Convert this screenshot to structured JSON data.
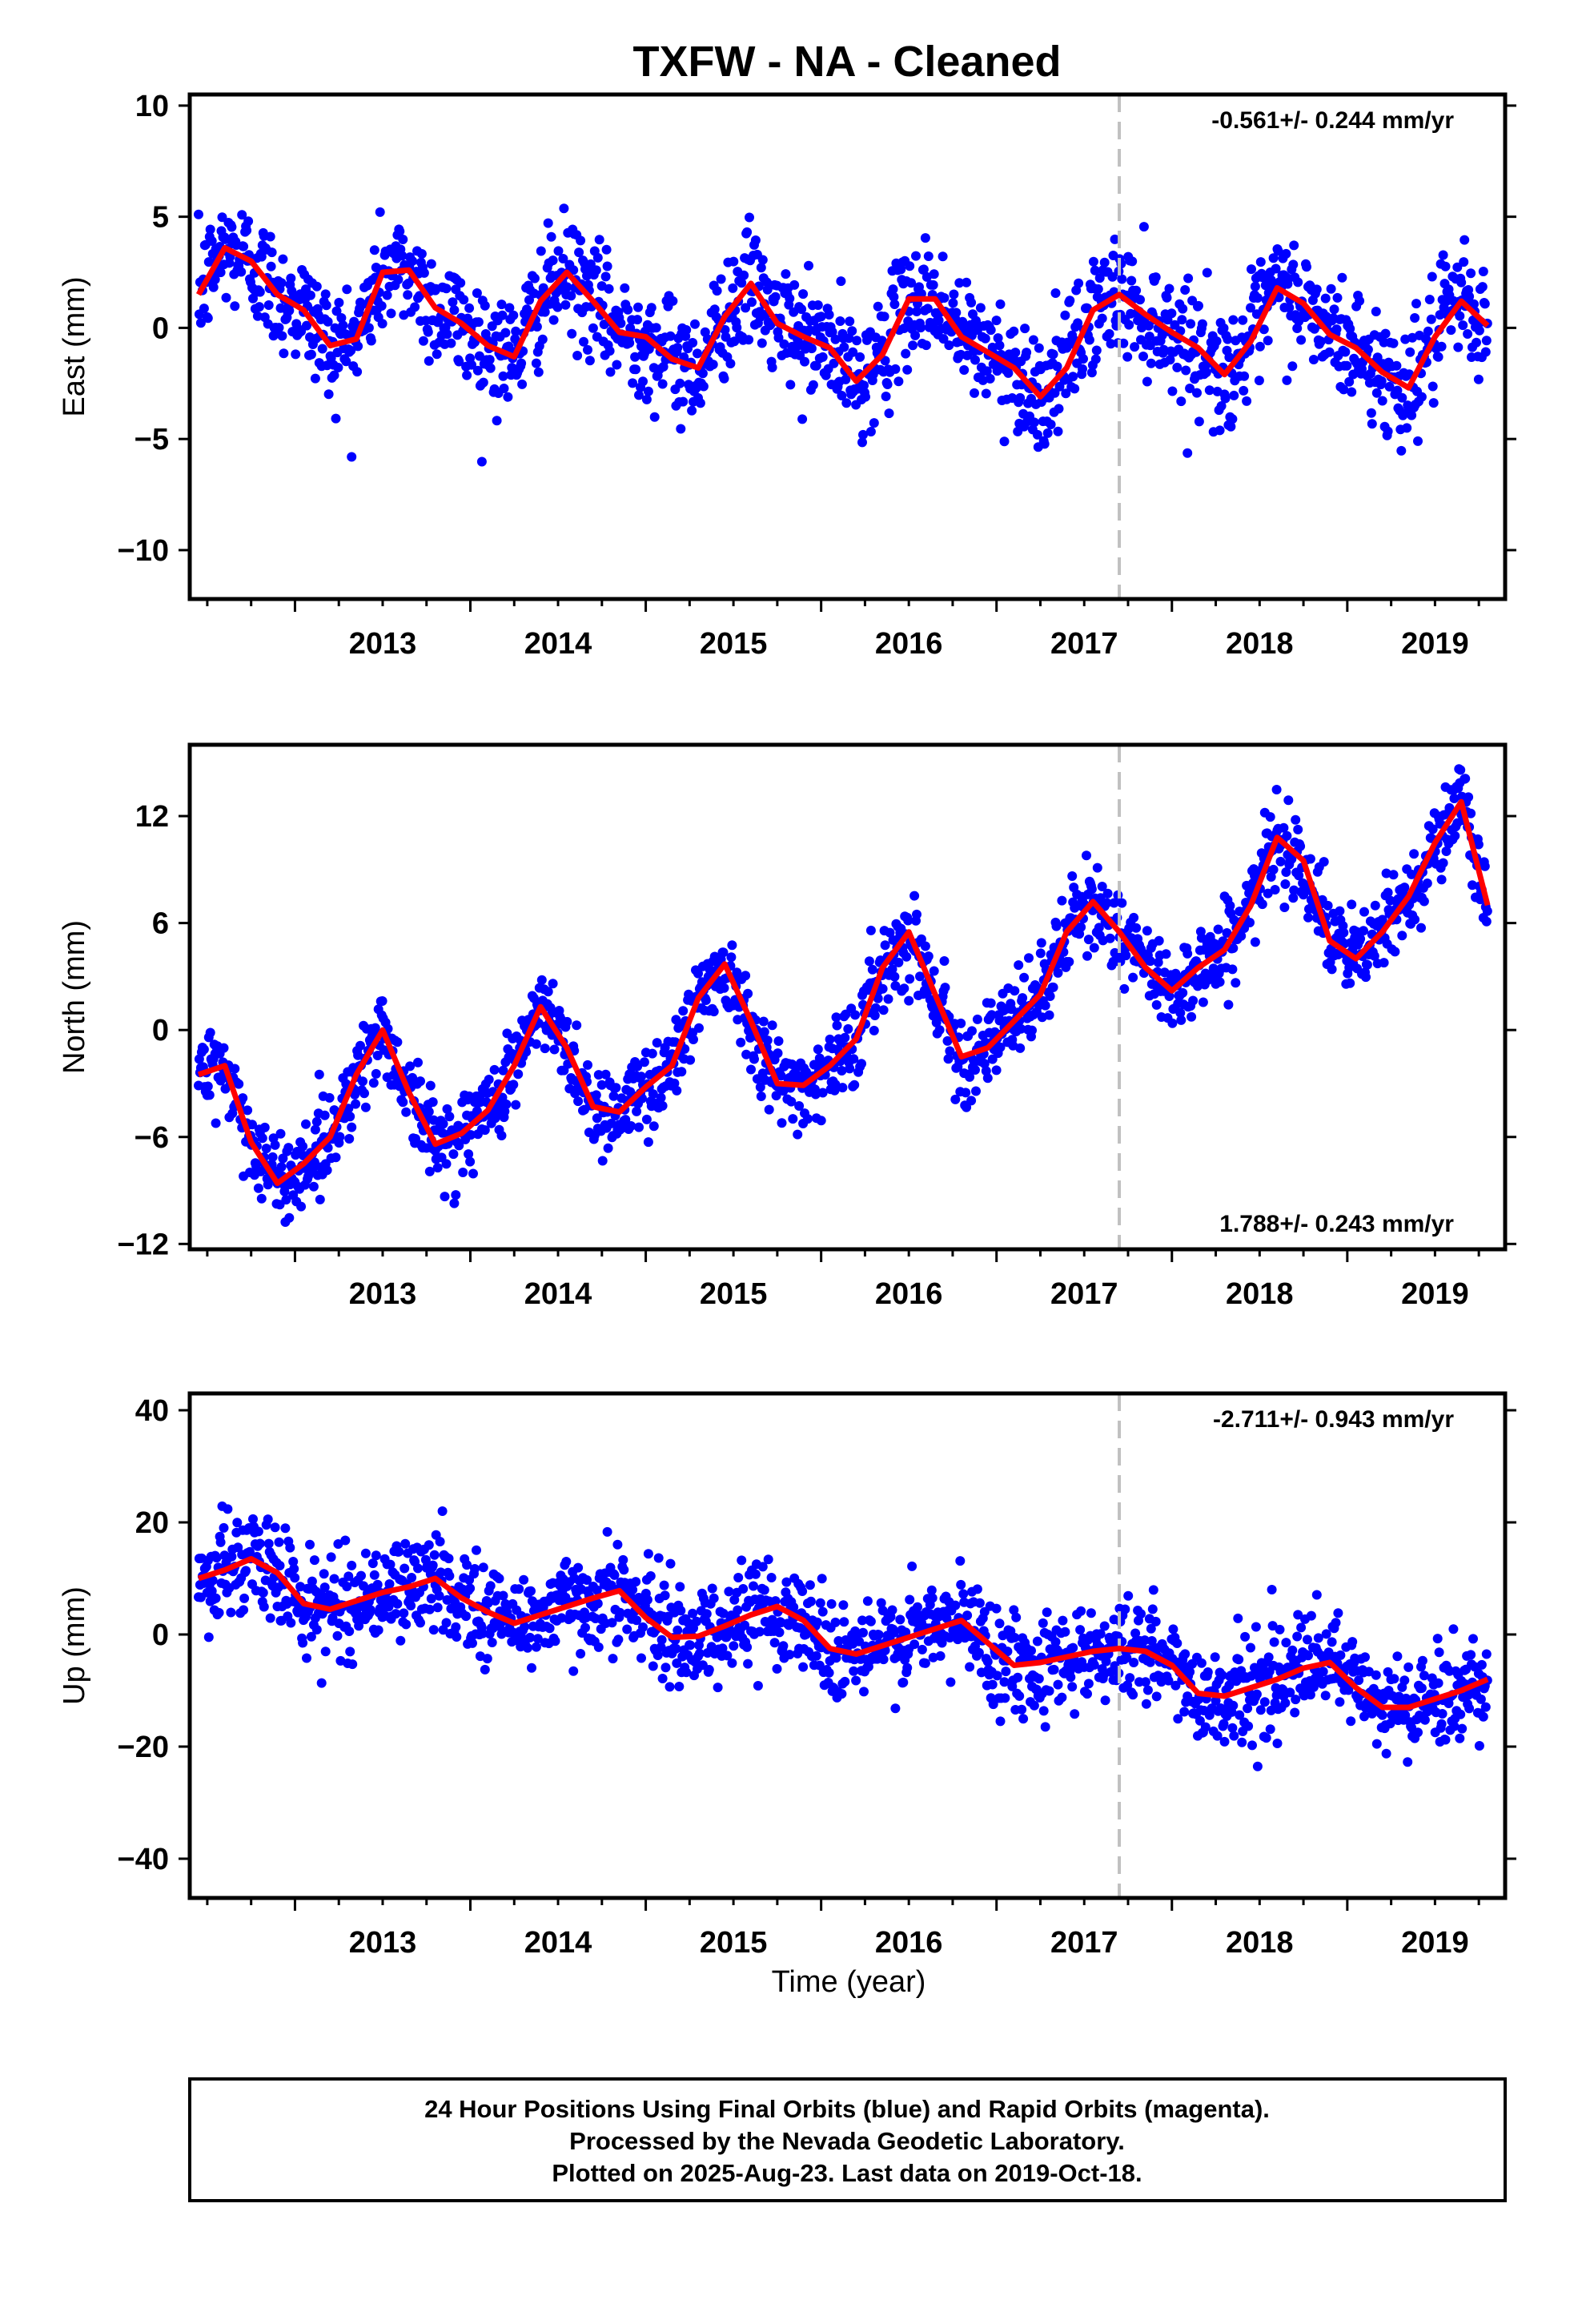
{
  "title": "TXFW  - NA - Cleaned",
  "xlabel": "Time (year)",
  "colors": {
    "final_orbits": "#0000ff",
    "model": "#ff0000",
    "frame": "#000000",
    "offset_line": "#c0c0c0"
  },
  "footer": {
    "line1": "24 Hour Positions Using Final Orbits (blue) and Rapid Orbits (magenta).",
    "line2": "Processed by the Nevada Geodetic Laboratory.",
    "line3": "Plotted on 2025-Aug-23. Last data on 2019-Oct-18."
  },
  "chart_data": [
    {
      "type": "scatter",
      "component": "east",
      "ylabel": "East (mm)",
      "rate_text": "-0.561+/- 0.244 mm/yr",
      "rate_position": "top-right",
      "xlim": [
        2012.4,
        2019.9
      ],
      "ylim": [
        -12.2,
        10.5
      ],
      "xticks": [
        2013,
        2014,
        2015,
        2016,
        2017,
        2018,
        2019
      ],
      "yticks": [
        -10,
        -5,
        0,
        5,
        10
      ],
      "offset_epoch": 2017.7,
      "model_series": {
        "name": "model",
        "x": [
          2012.45,
          2012.6,
          2012.75,
          2012.9,
          2013.05,
          2013.2,
          2013.35,
          2013.5,
          2013.65,
          2013.8,
          2013.95,
          2014.1,
          2014.25,
          2014.4,
          2014.55,
          2014.7,
          2014.85,
          2015.0,
          2015.15,
          2015.3,
          2015.45,
          2015.6,
          2015.75,
          2015.9,
          2016.05,
          2016.2,
          2016.35,
          2016.5,
          2016.65,
          2016.8,
          2016.95,
          2017.1,
          2017.25,
          2017.4,
          2017.55,
          2017.7,
          2017.85,
          2018.0,
          2018.15,
          2018.3,
          2018.45,
          2018.6,
          2018.75,
          2018.9,
          2019.05,
          2019.2,
          2019.35,
          2019.5,
          2019.65,
          2019.8
        ],
        "y": [
          1.5,
          3.6,
          3.0,
          1.5,
          0.8,
          -0.8,
          -0.5,
          2.5,
          2.6,
          0.9,
          0.2,
          -0.8,
          -1.3,
          1.2,
          2.5,
          1.2,
          -0.2,
          -0.4,
          -1.4,
          -1.8,
          0.5,
          2.0,
          0.2,
          -0.4,
          -0.9,
          -2.4,
          -1.2,
          1.3,
          1.3,
          -0.4,
          -1.1,
          -1.8,
          -3.1,
          -1.8,
          0.8,
          1.5,
          0.6,
          -0.2,
          -0.9,
          -2.1,
          -0.6,
          1.8,
          1.1,
          -0.3,
          -0.9,
          -2.0,
          -2.7,
          -0.4,
          1.2,
          0.1
        ]
      }
    },
    {
      "type": "scatter",
      "component": "north",
      "ylabel": "North (mm)",
      "rate_text": "1.788+/- 0.243 mm/yr",
      "rate_position": "bottom-right",
      "xlim": [
        2012.4,
        2019.9
      ],
      "ylim": [
        -12.3,
        16.0
      ],
      "xticks": [
        2013,
        2014,
        2015,
        2016,
        2017,
        2018,
        2019
      ],
      "yticks": [
        -12,
        -6,
        0,
        6,
        12
      ],
      "offset_epoch": 2017.7,
      "model_series": {
        "name": "model",
        "x": [
          2012.45,
          2012.6,
          2012.75,
          2012.9,
          2013.05,
          2013.2,
          2013.35,
          2013.5,
          2013.65,
          2013.8,
          2013.95,
          2014.1,
          2014.25,
          2014.4,
          2014.55,
          2014.7,
          2014.85,
          2015.0,
          2015.15,
          2015.3,
          2015.45,
          2015.6,
          2015.75,
          2015.9,
          2016.05,
          2016.2,
          2016.35,
          2016.5,
          2016.65,
          2016.8,
          2016.95,
          2017.1,
          2017.25,
          2017.4,
          2017.55,
          2017.7,
          2017.85,
          2018.0,
          2018.15,
          2018.3,
          2018.45,
          2018.6,
          2018.75,
          2018.9,
          2019.05,
          2019.2,
          2019.35,
          2019.5,
          2019.65,
          2019.8
        ],
        "y": [
          -2.5,
          -2.0,
          -6.3,
          -8.6,
          -7.5,
          -6.0,
          -2.5,
          0.0,
          -3.5,
          -6.4,
          -5.8,
          -4.5,
          -2.0,
          1.3,
          -1.0,
          -4.3,
          -4.6,
          -3.2,
          -2.0,
          1.8,
          3.7,
          0.5,
          -3.0,
          -3.1,
          -2.0,
          -0.5,
          3.5,
          5.5,
          2.0,
          -1.5,
          -1.0,
          0.5,
          2.0,
          5.5,
          7.2,
          5.5,
          3.5,
          2.2,
          3.5,
          4.5,
          7.0,
          10.8,
          9.5,
          5.0,
          4.0,
          5.5,
          7.5,
          10.5,
          12.8,
          7.0
        ]
      }
    },
    {
      "type": "scatter",
      "component": "up",
      "ylabel": "Up (mm)",
      "rate_text": "-2.711+/- 0.943 mm/yr",
      "rate_position": "top-right",
      "xlim": [
        2012.4,
        2019.9
      ],
      "ylim": [
        -47,
        43
      ],
      "xticks": [
        2013,
        2014,
        2015,
        2016,
        2017,
        2018,
        2019
      ],
      "yticks": [
        -40,
        -20,
        0,
        20,
        40
      ],
      "offset_epoch": 2017.7,
      "model_series": {
        "name": "model",
        "x": [
          2012.45,
          2012.6,
          2012.75,
          2012.9,
          2013.05,
          2013.2,
          2013.35,
          2013.5,
          2013.65,
          2013.8,
          2013.95,
          2014.1,
          2014.25,
          2014.4,
          2014.55,
          2014.7,
          2014.85,
          2015.0,
          2015.15,
          2015.3,
          2015.45,
          2015.6,
          2015.75,
          2015.9,
          2016.05,
          2016.2,
          2016.35,
          2016.5,
          2016.65,
          2016.8,
          2016.95,
          2017.1,
          2017.25,
          2017.4,
          2017.55,
          2017.7,
          2017.85,
          2018.0,
          2018.15,
          2018.3,
          2018.45,
          2018.6,
          2018.75,
          2018.9,
          2019.05,
          2019.2,
          2019.35,
          2019.5,
          2019.65,
          2019.8
        ],
        "y": [
          10,
          11.5,
          13.5,
          11.0,
          5.5,
          4.5,
          6.0,
          7.5,
          8.5,
          10.0,
          6.5,
          4.0,
          2.0,
          3.5,
          5.0,
          6.5,
          7.8,
          3.0,
          -0.5,
          -0.3,
          1.5,
          3.5,
          5.0,
          2.5,
          -2.5,
          -3.5,
          -2.0,
          -0.5,
          1.0,
          2.5,
          -1.5,
          -5.5,
          -5.0,
          -4.0,
          -3.0,
          -2.5,
          -3.0,
          -5.5,
          -10.5,
          -11.0,
          -9.5,
          -8.0,
          -6.0,
          -5.0,
          -9.5,
          -13.0,
          -13.0,
          -11.5,
          -10.0,
          -8.0
        ]
      }
    }
  ]
}
